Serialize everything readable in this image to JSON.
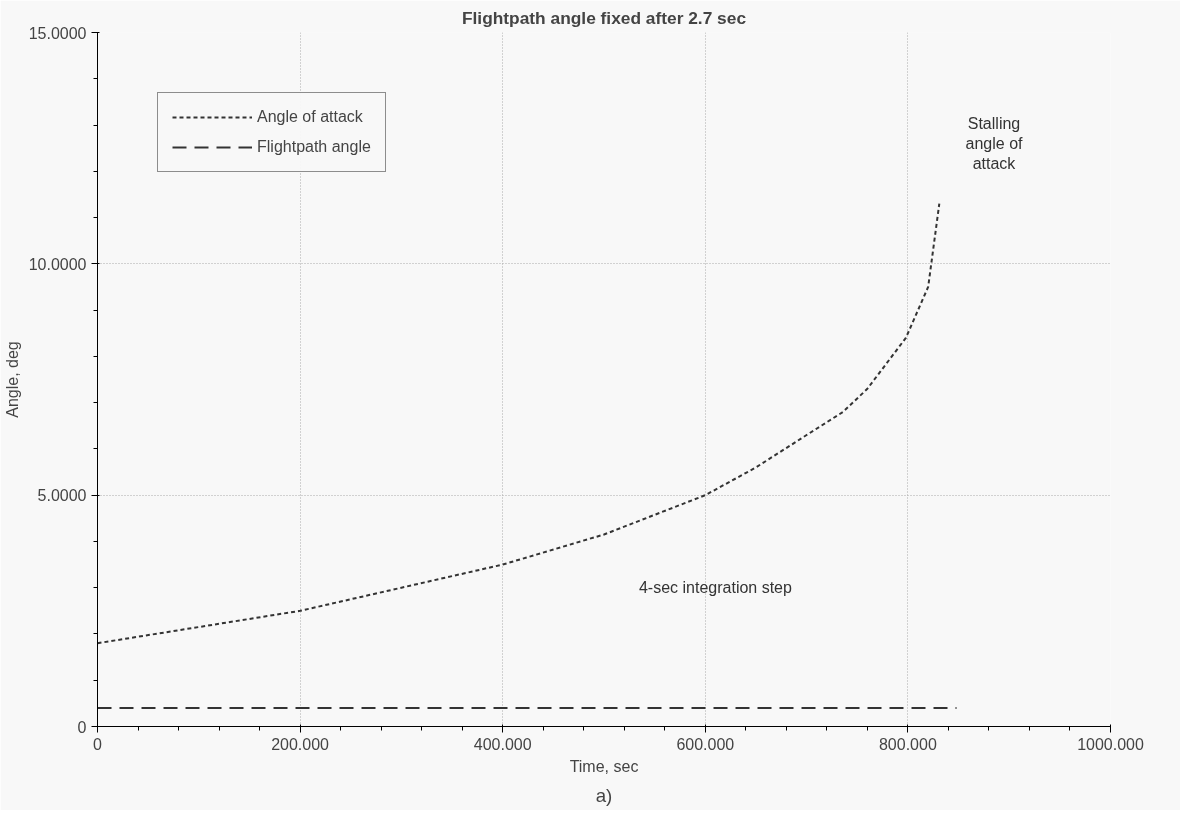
{
  "chart_data": {
    "type": "line",
    "title": "Flightpath angle fixed after 2.7 sec",
    "xlabel": "Time, sec",
    "ylabel": "Angle, deg",
    "xlim": [
      0,
      1000
    ],
    "ylim": [
      0,
      15
    ],
    "xticks": [
      0,
      {
        "value": 200,
        "label": "200.000"
      },
      {
        "value": 400,
        "label": "400.000"
      },
      {
        "value": 600,
        "label": "600.000"
      },
      {
        "value": 800,
        "label": "800.000"
      },
      {
        "value": 1000,
        "label": "1000.000"
      }
    ],
    "yticks": [
      0,
      {
        "value": 5,
        "label": "5.0000"
      },
      {
        "value": 10,
        "label": "10.0000"
      },
      {
        "value": 15,
        "label": "15.0000"
      }
    ],
    "grid": true,
    "legend": "top left",
    "marker": "none",
    "series": [
      {
        "name": "Angle of attack",
        "color": "#333333",
        "line_style": "dashed",
        "x": [
          0,
          100,
          200,
          300,
          400,
          500,
          600,
          650,
          700,
          736,
          760,
          798,
          820,
          831
        ],
        "values": [
          1.8,
          2.15,
          2.5,
          3.0,
          3.5,
          4.15,
          5.0,
          5.6,
          6.3,
          6.8,
          7.3,
          8.4,
          9.5,
          11.3
        ]
      },
      {
        "name": "Flightpath angle",
        "color": "#333333",
        "line_style": "longdash",
        "x": [
          0,
          200,
          400,
          600,
          800,
          848
        ],
        "values": [
          0.4,
          0.4,
          0.4,
          0.4,
          0.4,
          0.4
        ]
      }
    ],
    "annotations": [
      "Stalling angle of attack",
      "4-sec integration step",
      "a)"
    ]
  }
}
